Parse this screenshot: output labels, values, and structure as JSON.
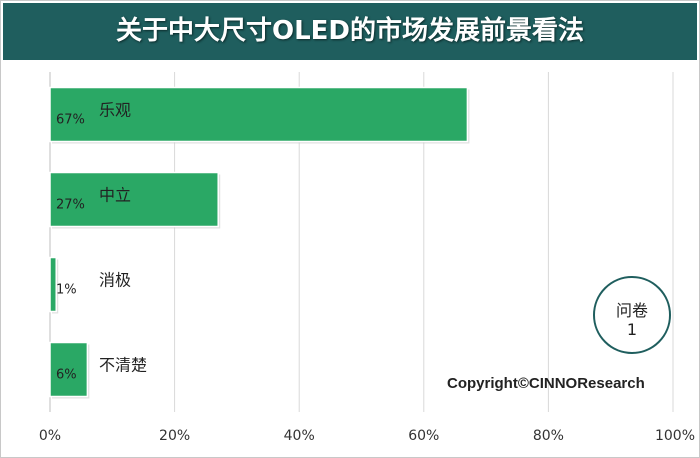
{
  "title": "关于中大尺寸OLED的市场发展前景看法",
  "badge": {
    "line1": "问卷",
    "line2": "1"
  },
  "copyright": "Copyright©CINNOResearch",
  "colors": {
    "banner": "#1f5e5e",
    "bar": "#2aa865",
    "grid": "#d9d9d9"
  },
  "chart_data": {
    "type": "bar",
    "orientation": "horizontal",
    "categories": [
      "乐观",
      "中立",
      "消极",
      "不清楚"
    ],
    "values": [
      67,
      27,
      1,
      6
    ],
    "data_labels": [
      "67%",
      "27%",
      "1%",
      "6%"
    ],
    "x_ticks": [
      "0%",
      "20%",
      "40%",
      "60%",
      "80%",
      "100%"
    ],
    "xlim": [
      0,
      100
    ],
    "grid": true,
    "legend": "none"
  }
}
